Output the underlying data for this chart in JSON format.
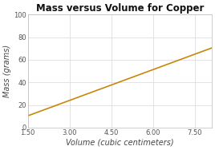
{
  "title": "Mass versus Volume for Copper",
  "xlabel": "Volume (cubic centimeters)",
  "ylabel": "Mass (grams)",
  "xlim": [
    1.5,
    8.1
  ],
  "ylim": [
    0,
    100
  ],
  "xticks": [
    1.5,
    3.0,
    4.5,
    6.0,
    7.5
  ],
  "yticks": [
    0,
    20,
    40,
    60,
    80,
    100
  ],
  "xtick_labels": [
    "1.50",
    "3.00",
    "4.50",
    "6.00",
    "7.50"
  ],
  "ytick_labels": [
    "0",
    "20",
    "40",
    "60",
    "80",
    "100"
  ],
  "line_x": [
    1.5,
    8.1
  ],
  "line_y": [
    10.5,
    70.5
  ],
  "line_color": "#c8860a",
  "line_width": 1.2,
  "fig_bg_color": "#ffffff",
  "plot_bg_color": "#ffffff",
  "grid_color": "#d8d8d8",
  "title_fontsize": 8.5,
  "label_fontsize": 7,
  "tick_fontsize": 6,
  "spine_color": "#bbbbbb"
}
